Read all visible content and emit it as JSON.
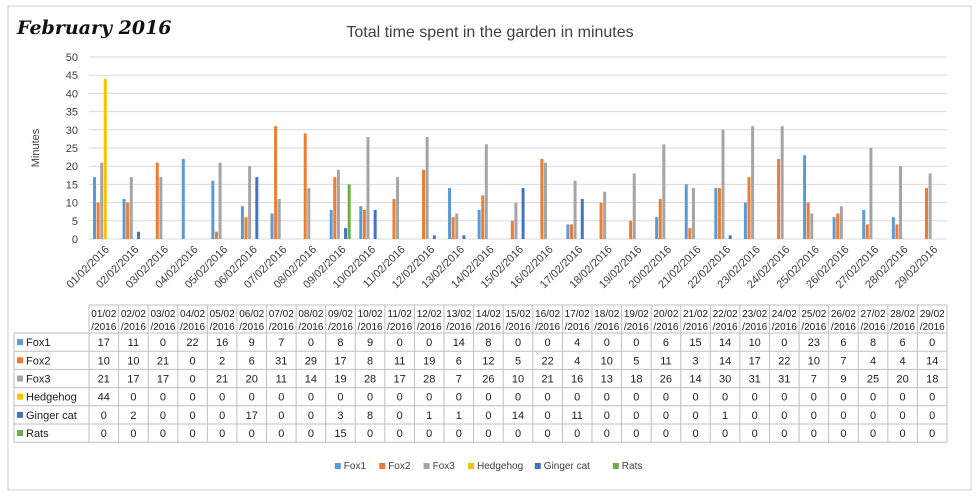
{
  "header": {
    "month_label": "February 2016"
  },
  "chart_data": {
    "type": "bar",
    "title": "Total time spent in the garden in minutes",
    "ylabel": "Minutes",
    "xlabel": "",
    "ylim": [
      0,
      50
    ],
    "y_ticks": [
      0,
      5,
      10,
      15,
      20,
      25,
      30,
      35,
      40,
      45,
      50
    ],
    "grid": true,
    "legend_position": "bottom",
    "data_table": true,
    "categories": [
      "01/02/2016",
      "02/02/2016",
      "03/02/2016",
      "04/02/2016",
      "05/02/2016",
      "06/02/2016",
      "07/02/2016",
      "08/02/2016",
      "09/02/2016",
      "10/02/2016",
      "11/02/2016",
      "12/02/2016",
      "13/02/2016",
      "14/02/2016",
      "15/02/2016",
      "16/02/2016",
      "17/02/2016",
      "18/02/2016",
      "19/02/2016",
      "20/02/2016",
      "21/02/2016",
      "22/02/2016",
      "23/02/2016",
      "24/02/2016",
      "25/02/2016",
      "26/02/2016",
      "27/02/2016",
      "28/02/2016",
      "29/02/2016"
    ],
    "table_headers": [
      [
        "01/02",
        "/2016"
      ],
      [
        "02/02",
        "/2016"
      ],
      [
        "03/02",
        "/2016"
      ],
      [
        "04/02",
        "/2016"
      ],
      [
        "05/02",
        "/2016"
      ],
      [
        "06/02",
        "/2016"
      ],
      [
        "07/02",
        "/2016"
      ],
      [
        "08/02",
        "/2016"
      ],
      [
        "09/02",
        "/2016"
      ],
      [
        "10/02",
        "/2016"
      ],
      [
        "11/02",
        "/2016"
      ],
      [
        "12/02",
        "/2016"
      ],
      [
        "13/02",
        "/2016"
      ],
      [
        "14/02",
        "/2016"
      ],
      [
        "15/02",
        "/2016"
      ],
      [
        "16/02",
        "/2016"
      ],
      [
        "17/02",
        "/2016"
      ],
      [
        "18/02",
        "/2016"
      ],
      [
        "19/02",
        "/2016"
      ],
      [
        "20/02",
        "/2016"
      ],
      [
        "21/02",
        "/2016"
      ],
      [
        "22/02",
        "/2016"
      ],
      [
        "23/02",
        "/2016"
      ],
      [
        "24/02",
        "/2016"
      ],
      [
        "25/02",
        "/2016"
      ],
      [
        "26/02",
        "/2016"
      ],
      [
        "27/02",
        "/2016"
      ],
      [
        "28/02",
        "/2016"
      ],
      [
        "29/02",
        "/2016"
      ]
    ],
    "series": [
      {
        "name": "Fox1",
        "color": "#5b9bd5",
        "values": [
          17,
          11,
          0,
          22,
          16,
          9,
          7,
          0,
          8,
          9,
          0,
          0,
          14,
          8,
          0,
          0,
          4,
          0,
          0,
          6,
          15,
          14,
          10,
          0,
          23,
          6,
          8,
          6,
          0
        ]
      },
      {
        "name": "Fox2",
        "color": "#ed7d31",
        "values": [
          10,
          10,
          21,
          0,
          2,
          6,
          31,
          29,
          17,
          8,
          11,
          19,
          6,
          12,
          5,
          22,
          4,
          10,
          5,
          11,
          3,
          14,
          17,
          22,
          10,
          7,
          4,
          4,
          14
        ]
      },
      {
        "name": "Fox3",
        "color": "#a5a5a5",
        "values": [
          21,
          17,
          17,
          0,
          21,
          20,
          11,
          14,
          19,
          28,
          17,
          28,
          7,
          26,
          10,
          21,
          16,
          13,
          18,
          26,
          14,
          30,
          31,
          31,
          7,
          9,
          25,
          20,
          18
        ]
      },
      {
        "name": "Hedgehog",
        "color": "#ffc000",
        "values": [
          44,
          0,
          0,
          0,
          0,
          0,
          0,
          0,
          0,
          0,
          0,
          0,
          0,
          0,
          0,
          0,
          0,
          0,
          0,
          0,
          0,
          0,
          0,
          0,
          0,
          0,
          0,
          0,
          0
        ]
      },
      {
        "name": "Ginger cat",
        "color": "#4472c4",
        "values": [
          0,
          2,
          0,
          0,
          0,
          17,
          0,
          0,
          3,
          8,
          0,
          1,
          1,
          0,
          14,
          0,
          11,
          0,
          0,
          0,
          0,
          1,
          0,
          0,
          0,
          0,
          0,
          0,
          0
        ]
      },
      {
        "name": "Rats",
        "color": "#70ad47",
        "values": [
          0,
          0,
          0,
          0,
          0,
          0,
          0,
          0,
          15,
          0,
          0,
          0,
          0,
          0,
          0,
          0,
          0,
          0,
          0,
          0,
          0,
          0,
          0,
          0,
          0,
          0,
          0,
          0,
          0
        ]
      }
    ]
  }
}
